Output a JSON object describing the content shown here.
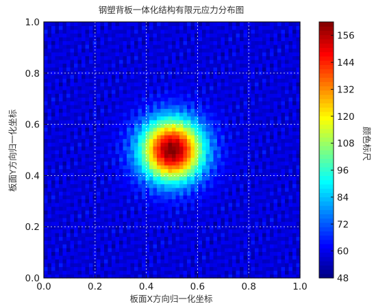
{
  "chart_data": {
    "type": "heatmap",
    "title": "钢塑背板一体化结构有限元应力分布图",
    "xlabel": "板面X方向归一化坐标",
    "ylabel": "板面Y方向归一化坐标",
    "xlim": [
      0.0,
      1.0
    ],
    "ylim": [
      0.0,
      1.0
    ],
    "xticks": [
      "0.0",
      "0.2",
      "0.4",
      "0.6",
      "0.8",
      "1.0"
    ],
    "yticks": [
      "0.0",
      "0.2",
      "0.4",
      "0.6",
      "0.8",
      "1.0"
    ],
    "grid": true,
    "colormap": "jet",
    "colorbar": {
      "label": "颜色标尺",
      "range": [
        48,
        162
      ],
      "ticks": [
        "48",
        "60",
        "72",
        "84",
        "96",
        "108",
        "120",
        "132",
        "144",
        "156"
      ]
    },
    "peak": {
      "x": 0.5,
      "y": 0.5,
      "value": 162
    },
    "background_value": 58,
    "spread_sigma": 0.085
  }
}
